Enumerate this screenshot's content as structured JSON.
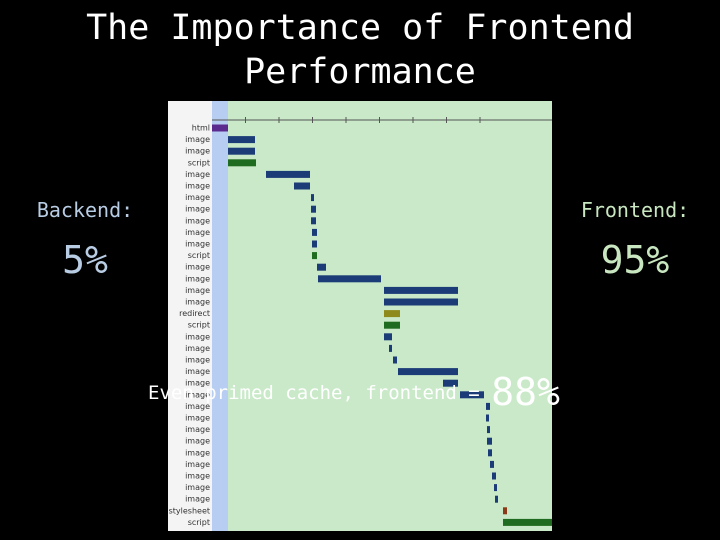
{
  "title": "The Importance of Frontend Performance",
  "backend": {
    "label": "Backend:",
    "value": "5%"
  },
  "frontend": {
    "label": "Frontend:",
    "value": "95%"
  },
  "note": {
    "text": "Even primed cache, frontend =",
    "value": "88%"
  },
  "waterfall": {
    "xlim": [
      0,
      340
    ],
    "colors": {
      "html": "#5b2a8e",
      "image": "#1c3c78",
      "script": "#1f6b1f",
      "redirect": "#8f8a1c",
      "stylesheet": "#8a3a18"
    },
    "rows": [
      {
        "label": "html",
        "start": 0,
        "end": 16
      },
      {
        "label": "image",
        "start": 16,
        "end": 43
      },
      {
        "label": "image",
        "start": 16,
        "end": 43
      },
      {
        "label": "script",
        "start": 16,
        "end": 44
      },
      {
        "label": "image",
        "start": 54,
        "end": 98
      },
      {
        "label": "image",
        "start": 82,
        "end": 98
      },
      {
        "label": "image",
        "start": 99,
        "end": 102
      },
      {
        "label": "image",
        "start": 99,
        "end": 104
      },
      {
        "label": "image",
        "start": 99,
        "end": 104
      },
      {
        "label": "image",
        "start": 100,
        "end": 105
      },
      {
        "label": "image",
        "start": 100,
        "end": 105
      },
      {
        "label": "script",
        "start": 100,
        "end": 105
      },
      {
        "label": "image",
        "start": 105,
        "end": 114
      },
      {
        "label": "image",
        "start": 106,
        "end": 169
      },
      {
        "label": "image",
        "start": 172,
        "end": 246
      },
      {
        "label": "image",
        "start": 172,
        "end": 246
      },
      {
        "label": "redirect",
        "start": 172,
        "end": 188
      },
      {
        "label": "script",
        "start": 172,
        "end": 188
      },
      {
        "label": "image",
        "start": 172,
        "end": 180
      },
      {
        "label": "image",
        "start": 177,
        "end": 180
      },
      {
        "label": "image",
        "start": 181,
        "end": 185
      },
      {
        "label": "image",
        "start": 186,
        "end": 246
      },
      {
        "label": "image",
        "start": 231,
        "end": 246
      },
      {
        "label": "image",
        "start": 248,
        "end": 272
      },
      {
        "label": "image",
        "start": 274,
        "end": 278
      },
      {
        "label": "image",
        "start": 274,
        "end": 277
      },
      {
        "label": "image",
        "start": 275,
        "end": 278
      },
      {
        "label": "image",
        "start": 275,
        "end": 280
      },
      {
        "label": "image",
        "start": 276,
        "end": 280
      },
      {
        "label": "image",
        "start": 278,
        "end": 282
      },
      {
        "label": "image",
        "start": 280,
        "end": 284
      },
      {
        "label": "image",
        "start": 282,
        "end": 285
      },
      {
        "label": "image",
        "start": 283,
        "end": 286
      },
      {
        "label": "stylesheet",
        "start": 291,
        "end": 295
      },
      {
        "label": "script",
        "start": 291,
        "end": 340
      }
    ]
  }
}
